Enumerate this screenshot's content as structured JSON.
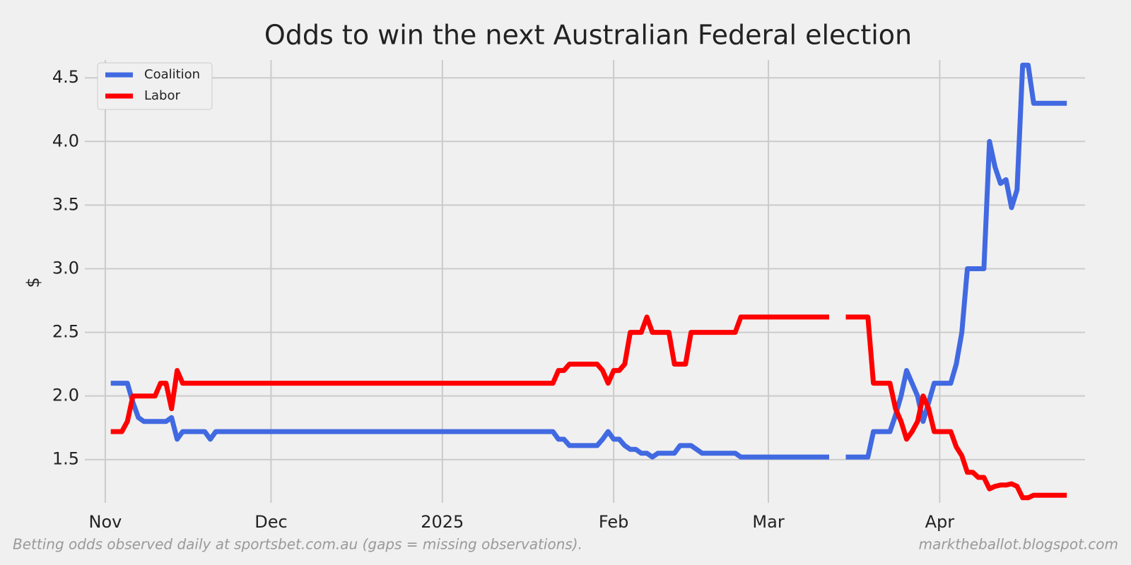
{
  "chart_data": {
    "type": "line",
    "title": "Odds to win the next Australian Federal election",
    "y_label": "$",
    "footnote": "Betting odds observed daily at sportsbet.com.au (gaps = missing observations).",
    "source": "marktheballot.blogspot.com",
    "x": [
      1,
      3,
      4,
      5,
      6,
      7,
      9,
      10,
      11,
      12,
      13,
      14,
      18,
      19,
      20,
      81,
      82,
      83,
      84,
      89,
      90,
      91,
      92,
      93,
      94,
      95,
      96,
      97,
      98,
      99,
      100,
      102,
      103,
      104,
      105,
      106,
      107,
      108,
      114,
      115,
      131,
      132,
      134,
      138,
      139,
      142,
      143,
      144,
      145,
      146,
      147,
      148,
      149,
      150,
      153,
      154,
      155,
      156,
      157,
      158,
      159,
      160,
      161,
      162,
      163,
      164,
      165,
      166,
      167,
      168,
      174
    ],
    "series": [
      {
        "name": "Coalition",
        "color": "#4169e1",
        "values": [
          2.1,
          2.1,
          2.1,
          1.95,
          1.83,
          1.8,
          1.8,
          1.8,
          1.8,
          1.83,
          1.66,
          1.72,
          1.72,
          1.66,
          1.72,
          1.72,
          1.66,
          1.66,
          1.61,
          1.61,
          1.66,
          1.72,
          1.66,
          1.66,
          1.61,
          1.58,
          1.58,
          1.55,
          1.55,
          1.52,
          1.55,
          1.55,
          1.55,
          1.61,
          1.61,
          1.61,
          1.58,
          1.55,
          1.55,
          1.52,
          1.52,
          null,
          1.52,
          1.52,
          1.72,
          1.72,
          1.85,
          2.0,
          2.2,
          2.1,
          2.0,
          1.8,
          1.95,
          2.1,
          2.1,
          2.25,
          2.5,
          3.0,
          3.0,
          3.0,
          3.0,
          4.0,
          3.8,
          3.67,
          3.7,
          3.48,
          3.62,
          4.6,
          4.6,
          4.3,
          4.3
        ]
      },
      {
        "name": "Labor",
        "color": "#ff0000",
        "values": [
          1.72,
          1.72,
          1.8,
          2.0,
          2.0,
          2.0,
          2.0,
          2.1,
          2.1,
          1.9,
          2.2,
          2.1,
          2.1,
          2.1,
          2.1,
          2.1,
          2.2,
          2.2,
          2.25,
          2.25,
          2.2,
          2.1,
          2.2,
          2.2,
          2.25,
          2.5,
          2.5,
          2.5,
          2.62,
          2.5,
          2.5,
          2.5,
          2.25,
          2.25,
          2.25,
          2.5,
          2.5,
          2.5,
          2.5,
          2.62,
          2.62,
          null,
          2.62,
          2.62,
          2.1,
          2.1,
          1.9,
          1.8,
          1.66,
          1.72,
          1.8,
          2.0,
          1.9,
          1.72,
          1.72,
          1.6,
          1.53,
          1.4,
          1.4,
          1.36,
          1.36,
          1.27,
          1.29,
          1.3,
          1.3,
          1.31,
          1.29,
          1.2,
          1.2,
          1.22,
          1.22
        ]
      }
    ],
    "xlim": [
      -3.7,
      177.3
    ],
    "xticks": [
      {
        "value": 0,
        "label": "Nov"
      },
      {
        "value": 30,
        "label": "Dec"
      },
      {
        "value": 61,
        "label": "2025"
      },
      {
        "value": 92,
        "label": "Feb"
      },
      {
        "value": 120,
        "label": "Mar"
      },
      {
        "value": 151,
        "label": "Apr"
      }
    ],
    "ylim": [
      1.16,
      4.64
    ],
    "yticks": [
      {
        "value": 1.5,
        "label": "1.5"
      },
      {
        "value": 2,
        "label": "2.0"
      },
      {
        "value": 2.5,
        "label": "2.5"
      },
      {
        "value": 3,
        "label": "3.0"
      },
      {
        "value": 3.5,
        "label": "3.5"
      },
      {
        "value": 4,
        "label": "4.0"
      },
      {
        "value": 4.5,
        "label": "4.5"
      }
    ],
    "grid": true,
    "legend": "upper-left"
  }
}
